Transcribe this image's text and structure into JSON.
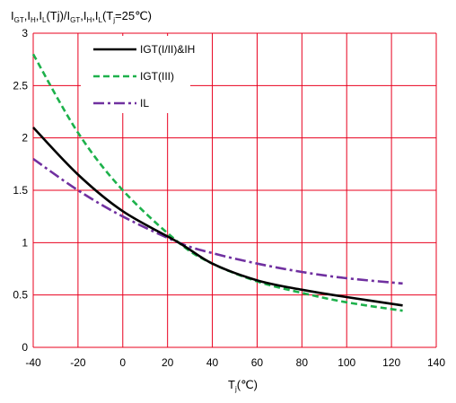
{
  "chart_data": {
    "type": "line",
    "title": "",
    "ylabel_parts": [
      {
        "t": "I",
        "sub": false
      },
      {
        "t": "GT",
        "sub": true
      },
      {
        "t": ",I",
        "sub": false
      },
      {
        "t": "H",
        "sub": true
      },
      {
        "t": ",I",
        "sub": false
      },
      {
        "t": "L",
        "sub": true
      },
      {
        "t": "(Tj)/I",
        "sub": false
      },
      {
        "t": "GT",
        "sub": true
      },
      {
        "t": ",I",
        "sub": false
      },
      {
        "t": "H",
        "sub": true
      },
      {
        "t": ",I",
        "sub": false
      },
      {
        "t": "L",
        "sub": true
      },
      {
        "t": "(T",
        "sub": false
      },
      {
        "t": "j",
        "sub": true
      },
      {
        "t": "=25℃)",
        "sub": false
      }
    ],
    "xlabel_parts": [
      {
        "t": "T",
        "sub": false
      },
      {
        "t": "j",
        "sub": true
      },
      {
        "t": "(℃)",
        "sub": false
      }
    ],
    "xlim": [
      -40,
      140
    ],
    "ylim": [
      0,
      3
    ],
    "xticks": [
      "-40",
      "-20",
      "0",
      "20",
      "40",
      "60",
      "80",
      "100",
      "120",
      "140"
    ],
    "yticks": [
      "0",
      "0.5",
      "1",
      "1.5",
      "2",
      "2.5",
      "3"
    ],
    "grid": true,
    "grid_color": "#e8001e",
    "legend_position": "top-left",
    "series": [
      {
        "name": "IGT(I/II)&IH",
        "color": "#000000",
        "dash": "solid",
        "points": [
          [
            -40,
            2.1
          ],
          [
            -20,
            1.65
          ],
          [
            0,
            1.3
          ],
          [
            25,
            1.0
          ],
          [
            40,
            0.8
          ],
          [
            60,
            0.64
          ],
          [
            80,
            0.55
          ],
          [
            100,
            0.48
          ],
          [
            125,
            0.4
          ]
        ]
      },
      {
        "name": "IGT(III)",
        "color": "#1db14b",
        "dash": "dashed",
        "points": [
          [
            -40,
            2.8
          ],
          [
            -20,
            2.05
          ],
          [
            0,
            1.5
          ],
          [
            25,
            1.0
          ],
          [
            40,
            0.8
          ],
          [
            60,
            0.63
          ],
          [
            80,
            0.52
          ],
          [
            100,
            0.43
          ],
          [
            125,
            0.35
          ]
        ]
      },
      {
        "name": "IL",
        "color": "#7030a0",
        "dash": "dashdot",
        "points": [
          [
            -40,
            1.8
          ],
          [
            -20,
            1.5
          ],
          [
            0,
            1.25
          ],
          [
            25,
            1.0
          ],
          [
            40,
            0.9
          ],
          [
            60,
            0.8
          ],
          [
            80,
            0.72
          ],
          [
            100,
            0.66
          ],
          [
            125,
            0.61
          ]
        ]
      }
    ]
  }
}
